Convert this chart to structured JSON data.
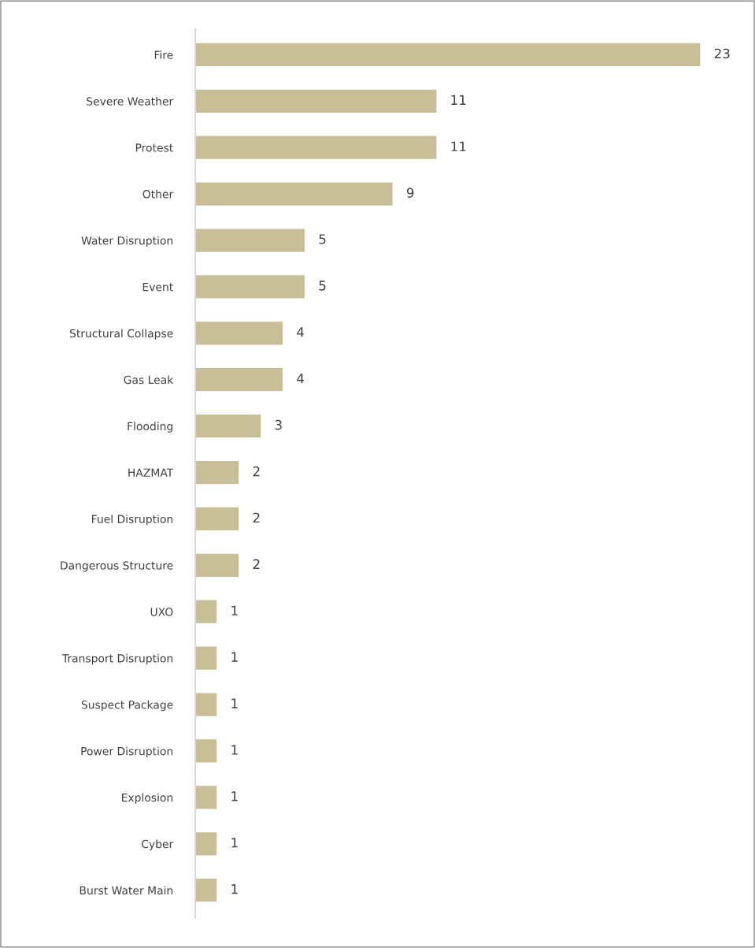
{
  "chart_data": {
    "type": "bar",
    "orientation": "horizontal",
    "categories": [
      "Fire",
      "Severe Weather",
      "Protest",
      "Other",
      "Water Disruption",
      "Event",
      "Structural Collapse",
      "Gas Leak",
      "Flooding",
      "HAZMAT",
      "Fuel Disruption",
      "Dangerous Structure",
      "UXO",
      "Transport Disruption",
      "Suspect Package",
      "Power Disruption",
      "Explosion",
      "Cyber",
      "Burst Water Main"
    ],
    "values": [
      23,
      11,
      11,
      9,
      5,
      5,
      4,
      4,
      3,
      2,
      2,
      2,
      1,
      1,
      1,
      1,
      1,
      1,
      1
    ],
    "color": "#c8bf98",
    "data_labels": true,
    "grid": false,
    "legend": false,
    "tick_labels": "y"
  }
}
